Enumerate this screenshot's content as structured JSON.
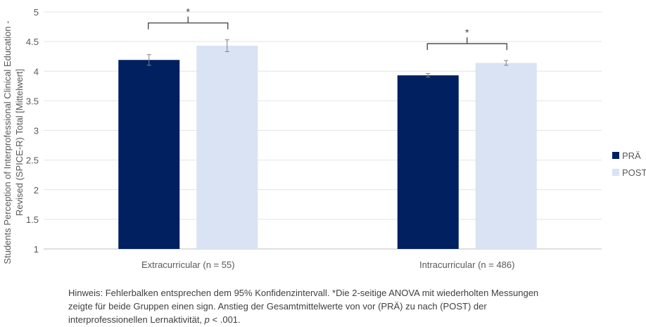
{
  "chart_data": {
    "type": "bar",
    "ylabel": "Students Perception of Interprofessional Clinical Education - Revised (SPICE-R) Total [Mittelwert]",
    "ylim": [
      1,
      5
    ],
    "yticks": [
      "1",
      "1.5",
      "2",
      "2.5",
      "3",
      "3.5",
      "4",
      "4.5",
      "5"
    ],
    "grid": true,
    "legend_position": "right",
    "categories": [
      "Extracurricular (n = 55)",
      "Intracurricular (n = 486)"
    ],
    "series": [
      {
        "name": "PRÄ",
        "color": "#002060",
        "values": [
          4.19,
          3.93
        ],
        "errors": [
          0.09,
          0.03
        ]
      },
      {
        "name": "POST",
        "color": "#DAE3F3",
        "values": [
          4.43,
          4.14
        ],
        "errors": [
          0.1,
          0.04
        ]
      }
    ],
    "annotations": [
      "*",
      "*"
    ]
  },
  "note": {
    "line1": "Hinweis: Fehlerbalken entsprechen dem 95% Konfidenzintervall. *Die 2-seitige ANOVA mit wiederholten Messungen",
    "line2": "zeigte für beide Gruppen einen sign. Anstieg der Gesamtmittelwerte von vor (PRÄ) zu nach (POST) der",
    "line3_pre": "interprofessionellen Lernaktivität, ",
    "line3_p": "p",
    "line3_post": " < .001."
  }
}
